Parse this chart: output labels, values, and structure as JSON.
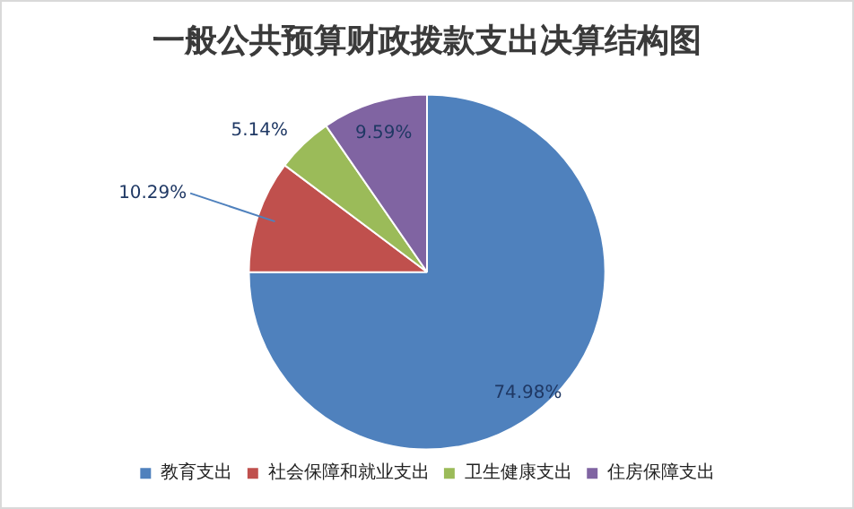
{
  "chart_data": {
    "type": "pie",
    "title": "一般公共预算财政拨款支出决算结构图",
    "categories": [
      "教育支出",
      "社会保障和就业支出",
      "卫生健康支出",
      "住房保障支出"
    ],
    "values": [
      74.98,
      10.29,
      5.14,
      9.59
    ],
    "colors": [
      "#4f81bd",
      "#c0504d",
      "#9bbb59",
      "#8064a2"
    ],
    "value_labels": [
      "74.98%",
      "10.29%",
      "5.14%",
      "9.59%"
    ],
    "legend": "bottom"
  }
}
